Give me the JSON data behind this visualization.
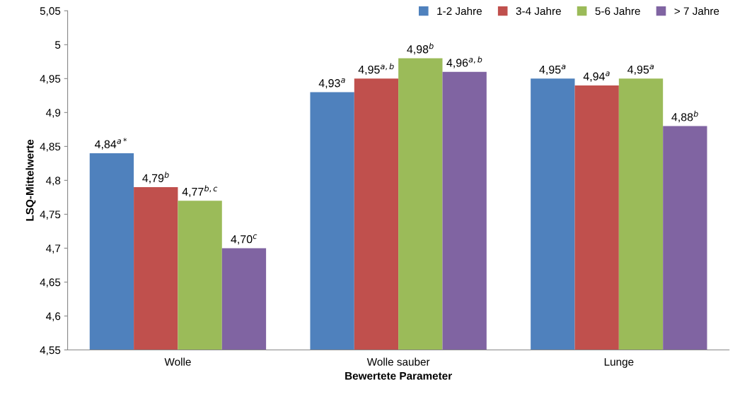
{
  "chart_data": {
    "type": "bar",
    "xlabel": "Bewertete Parameter",
    "ylabel": "LSQ-Mittelwerte",
    "categories": [
      "Wolle",
      "Wolle sauber",
      "Lunge"
    ],
    "series": [
      {
        "name": "1-2 Jahre",
        "color": "#4f81bd",
        "values": [
          4.84,
          4.93,
          4.95
        ],
        "value_labels": [
          "4,84$^{a*}$",
          "4,93$^{a}$",
          "4,95$^{a}$"
        ]
      },
      {
        "name": "3-4 Jahre",
        "color": "#c0504d",
        "values": [
          4.79,
          4.95,
          4.94
        ],
        "value_labels": [
          "4,79$^{b}$",
          "4,95$^{a,b}$",
          "4,94$^{a}$"
        ]
      },
      {
        "name": "5-6 Jahre",
        "color": "#9bbb59",
        "values": [
          4.77,
          4.98,
          4.95
        ],
        "value_labels": [
          "4,77$^{b,c}$",
          "4,98$^{b}$",
          "4,95$^{a}$"
        ]
      },
      {
        "name": "> 7 Jahre",
        "color": "#8064a2",
        "values": [
          4.7,
          4.96,
          4.88
        ],
        "value_labels": [
          "4,70$^{c}$",
          "4,96$^{a,b}$",
          "4,88$^{b}$"
        ]
      }
    ],
    "ylim": [
      4.55,
      5.05
    ],
    "yticks": [
      {
        "value": 4.55,
        "label": "4,55"
      },
      {
        "value": 4.6,
        "label": "4,6"
      },
      {
        "value": 4.65,
        "label": "4,65"
      },
      {
        "value": 4.7,
        "label": "4,7"
      },
      {
        "value": 4.75,
        "label": "4,75"
      },
      {
        "value": 4.8,
        "label": "4,8"
      },
      {
        "value": 4.85,
        "label": "4,85"
      },
      {
        "value": 4.9,
        "label": "4,9"
      },
      {
        "value": 4.95,
        "label": "4,95"
      },
      {
        "value": 5,
        "label": "5"
      },
      {
        "value": 5.05,
        "label": "5,05"
      }
    ],
    "grid": false,
    "legend": "top right"
  }
}
